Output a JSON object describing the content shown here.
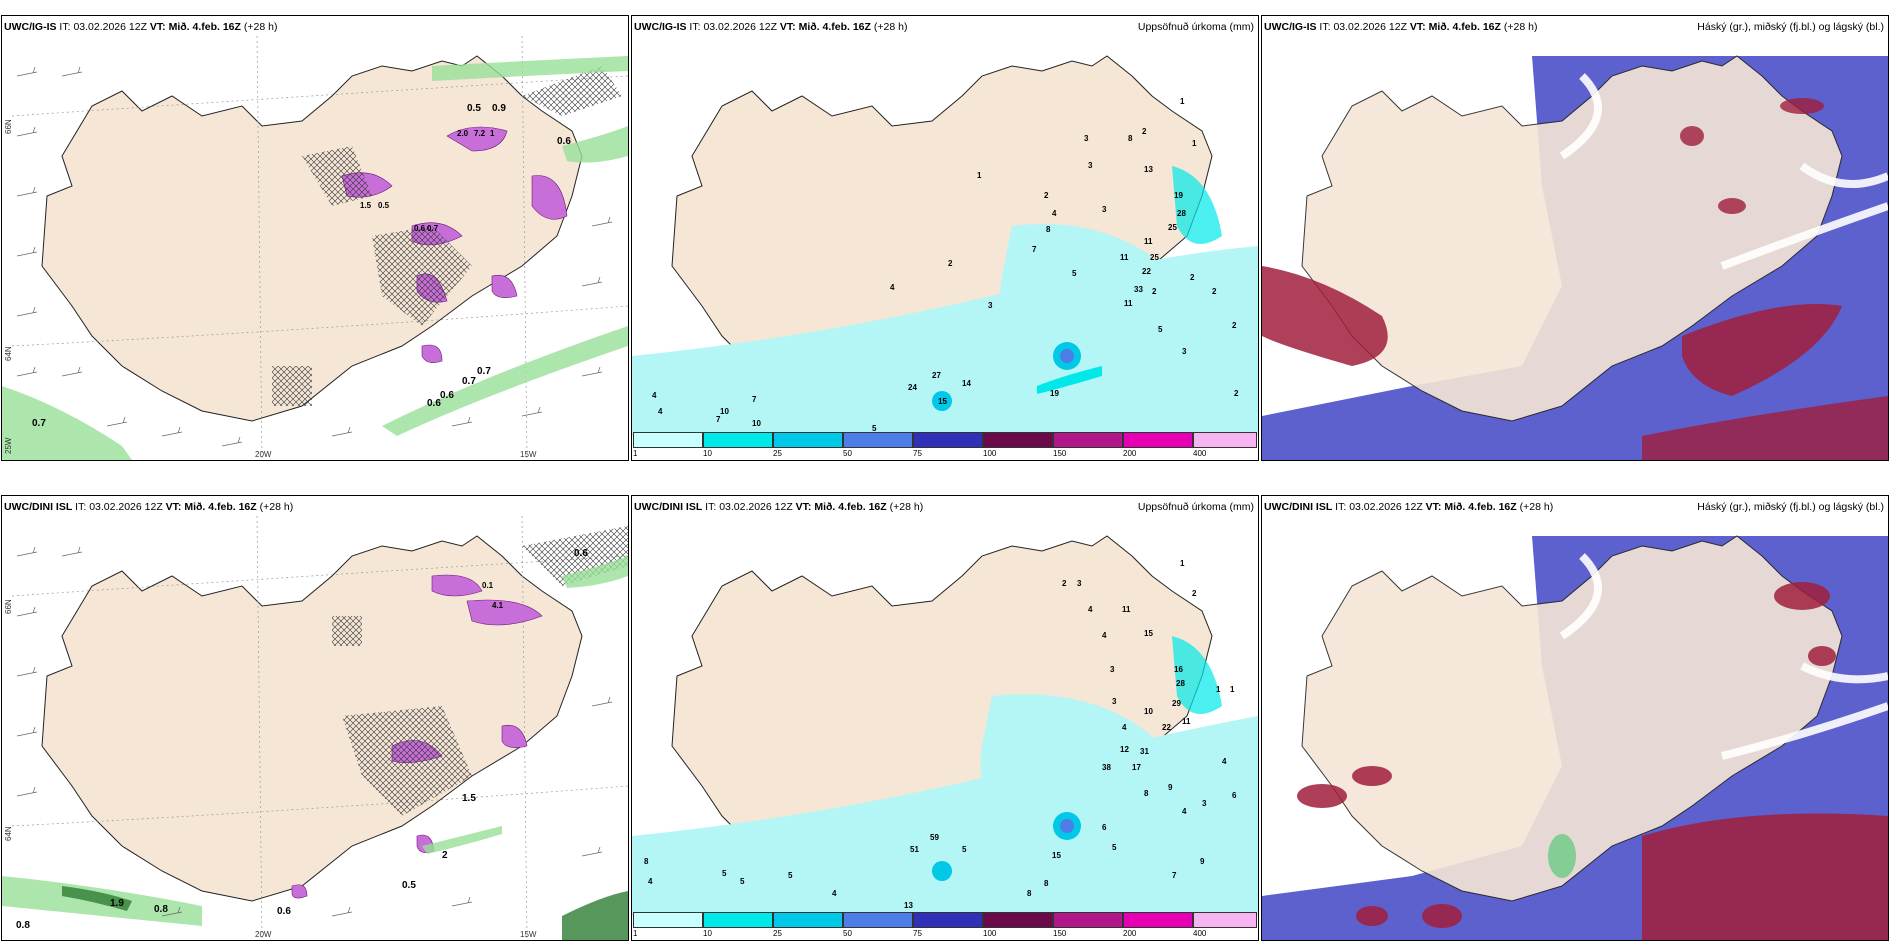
{
  "panels": {
    "tl": {
      "model": "UWC/IG-IS",
      "it_label": "IT:",
      "it": "03.02.2026 12Z",
      "vt_label": "VT:",
      "vt": "Mið. 4.feb. 16Z",
      "lead": "(+28 h)"
    },
    "tc": {
      "model": "UWC/IG-IS",
      "it_label": "IT:",
      "it": "03.02.2026 12Z",
      "vt_label": "VT:",
      "vt": "Mið. 4.feb. 16Z",
      "lead": "(+28 h)",
      "title": "Uppsöfnuð úrkoma (mm)"
    },
    "tr": {
      "model": "UWC/IG-IS",
      "it_label": "IT:",
      "it": "03.02.2026 12Z",
      "vt_label": "VT:",
      "vt": "Mið. 4.feb. 16Z",
      "lead": "(+28 h)",
      "title": "Háský (gr.), miðský (fj.bl.) og lágský (bl.)"
    },
    "bl": {
      "model": "UWC/DINI ISL",
      "it_label": "IT:",
      "it": "03.02.2026 12Z",
      "vt_label": "VT:",
      "vt": "Mið. 4.feb. 16Z",
      "lead": "(+28 h)"
    },
    "bc": {
      "model": "UWC/DINI ISL",
      "it_label": "IT:",
      "it": "03.02.2026 12Z",
      "vt_label": "VT:",
      "vt": "Mið. 4.feb. 16Z",
      "lead": "(+28 h)",
      "title": "Uppsöfnuð úrkoma (mm)"
    },
    "br": {
      "model": "UWC/DINI ISL",
      "it_label": "IT:",
      "it": "03.02.2026 12Z",
      "vt_label": "VT:",
      "vt": "Mið. 4.feb. 16Z",
      "lead": "(+28 h)",
      "title": "Háský (gr.), miðský (fj.bl.) og lágský (bl.)"
    }
  },
  "axes": {
    "lat_66": "66N",
    "lat_64": "64N",
    "lon_25": "25W",
    "lon_20": "20W",
    "lon_15": "15W"
  },
  "legend": {
    "ticks": [
      "1",
      "10",
      "25",
      "50",
      "75",
      "100",
      "150",
      "200",
      "400"
    ],
    "colors": [
      "#c8ffff",
      "#00e8e8",
      "#00c8e6",
      "#4d7de8",
      "#3030b8",
      "#6b0a4a",
      "#b0188a",
      "#e600b4",
      "#f6b4f0"
    ]
  },
  "colors": {
    "land": "#f5e6d6",
    "precip_light": "#b4f5f5",
    "cloud_low": "#4a50c8",
    "cloud_mid": "#9aa4e6",
    "cloud_high": "#a01e3c",
    "green": "#90e090"
  },
  "top_left_values": [
    "0.5",
    "0.9",
    "0.6",
    "0.7",
    "0.6",
    "0.6",
    "0.7",
    "0.7",
    "2.0",
    "7.2",
    "1",
    "1.5",
    "0.5",
    "0.6",
    "0.7"
  ],
  "bottom_left_values": [
    "0.6",
    "0.1",
    "4.1",
    "1.5",
    "2",
    "0.5",
    "1.9",
    "0.8",
    "0.6",
    "0.8"
  ],
  "top_center_values": [
    "1",
    "2",
    "3",
    "8",
    "1",
    "3",
    "13",
    "2",
    "4",
    "19",
    "3",
    "28",
    "8",
    "25",
    "11",
    "1",
    "4",
    "2",
    "25",
    "7",
    "5",
    "11",
    "22",
    "2",
    "33",
    "11",
    "5",
    "3",
    "27",
    "14",
    "24",
    "15",
    "19",
    "4",
    "4",
    "10",
    "7",
    "5",
    "7",
    "10",
    "3",
    "2",
    "2",
    "2",
    "2"
  ],
  "bottom_center_values": [
    "1",
    "2",
    "3",
    "4",
    "11",
    "2",
    "4",
    "15",
    "3",
    "16",
    "1",
    "1",
    "3",
    "29",
    "10",
    "28",
    "22",
    "11",
    "4",
    "12",
    "38",
    "31",
    "17",
    "8",
    "4",
    "9",
    "6",
    "3",
    "4",
    "59",
    "51",
    "5",
    "15",
    "6",
    "5",
    "8",
    "4",
    "5",
    "5",
    "5",
    "7",
    "13",
    "8",
    "8",
    "4",
    "9"
  ]
}
